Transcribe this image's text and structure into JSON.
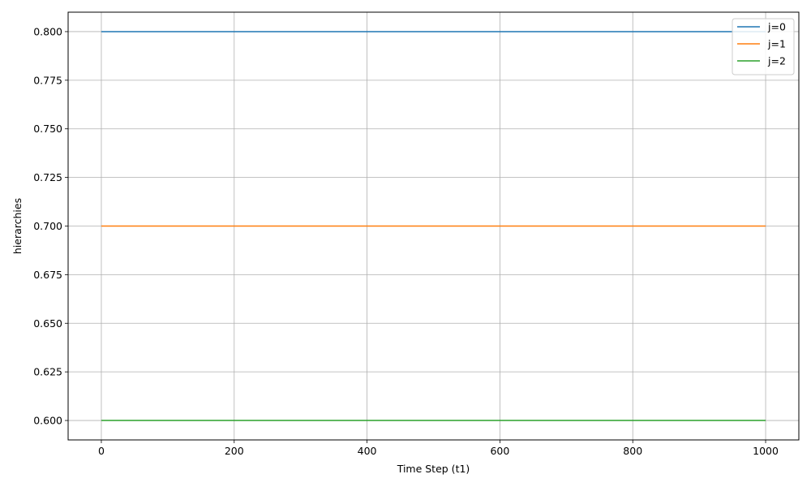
{
  "chart_data": {
    "type": "line",
    "title": "",
    "xlabel": "Time Step (t1)",
    "ylabel": "hierarchies",
    "xlim": [
      -50,
      1050
    ],
    "ylim": [
      0.59,
      0.81
    ],
    "xticks": [
      0,
      200,
      400,
      600,
      800,
      1000
    ],
    "xtick_labels": [
      "0",
      "200",
      "400",
      "600",
      "800",
      "1000"
    ],
    "yticks": [
      0.6,
      0.625,
      0.65,
      0.675,
      0.7,
      0.725,
      0.75,
      0.775,
      0.8
    ],
    "ytick_labels": [
      "0.600",
      "0.625",
      "0.650",
      "0.675",
      "0.700",
      "0.725",
      "0.750",
      "0.775",
      "0.800"
    ],
    "grid": true,
    "legend_position": "top-right",
    "series": [
      {
        "name": "j=0",
        "color": "#1f77b4",
        "x": [
          0,
          1000
        ],
        "y": [
          0.8,
          0.8
        ]
      },
      {
        "name": "j=1",
        "color": "#ff7f0e",
        "x": [
          0,
          1000
        ],
        "y": [
          0.7,
          0.7
        ]
      },
      {
        "name": "j=2",
        "color": "#2ca02c",
        "x": [
          0,
          1000
        ],
        "y": [
          0.6,
          0.6
        ]
      }
    ]
  }
}
